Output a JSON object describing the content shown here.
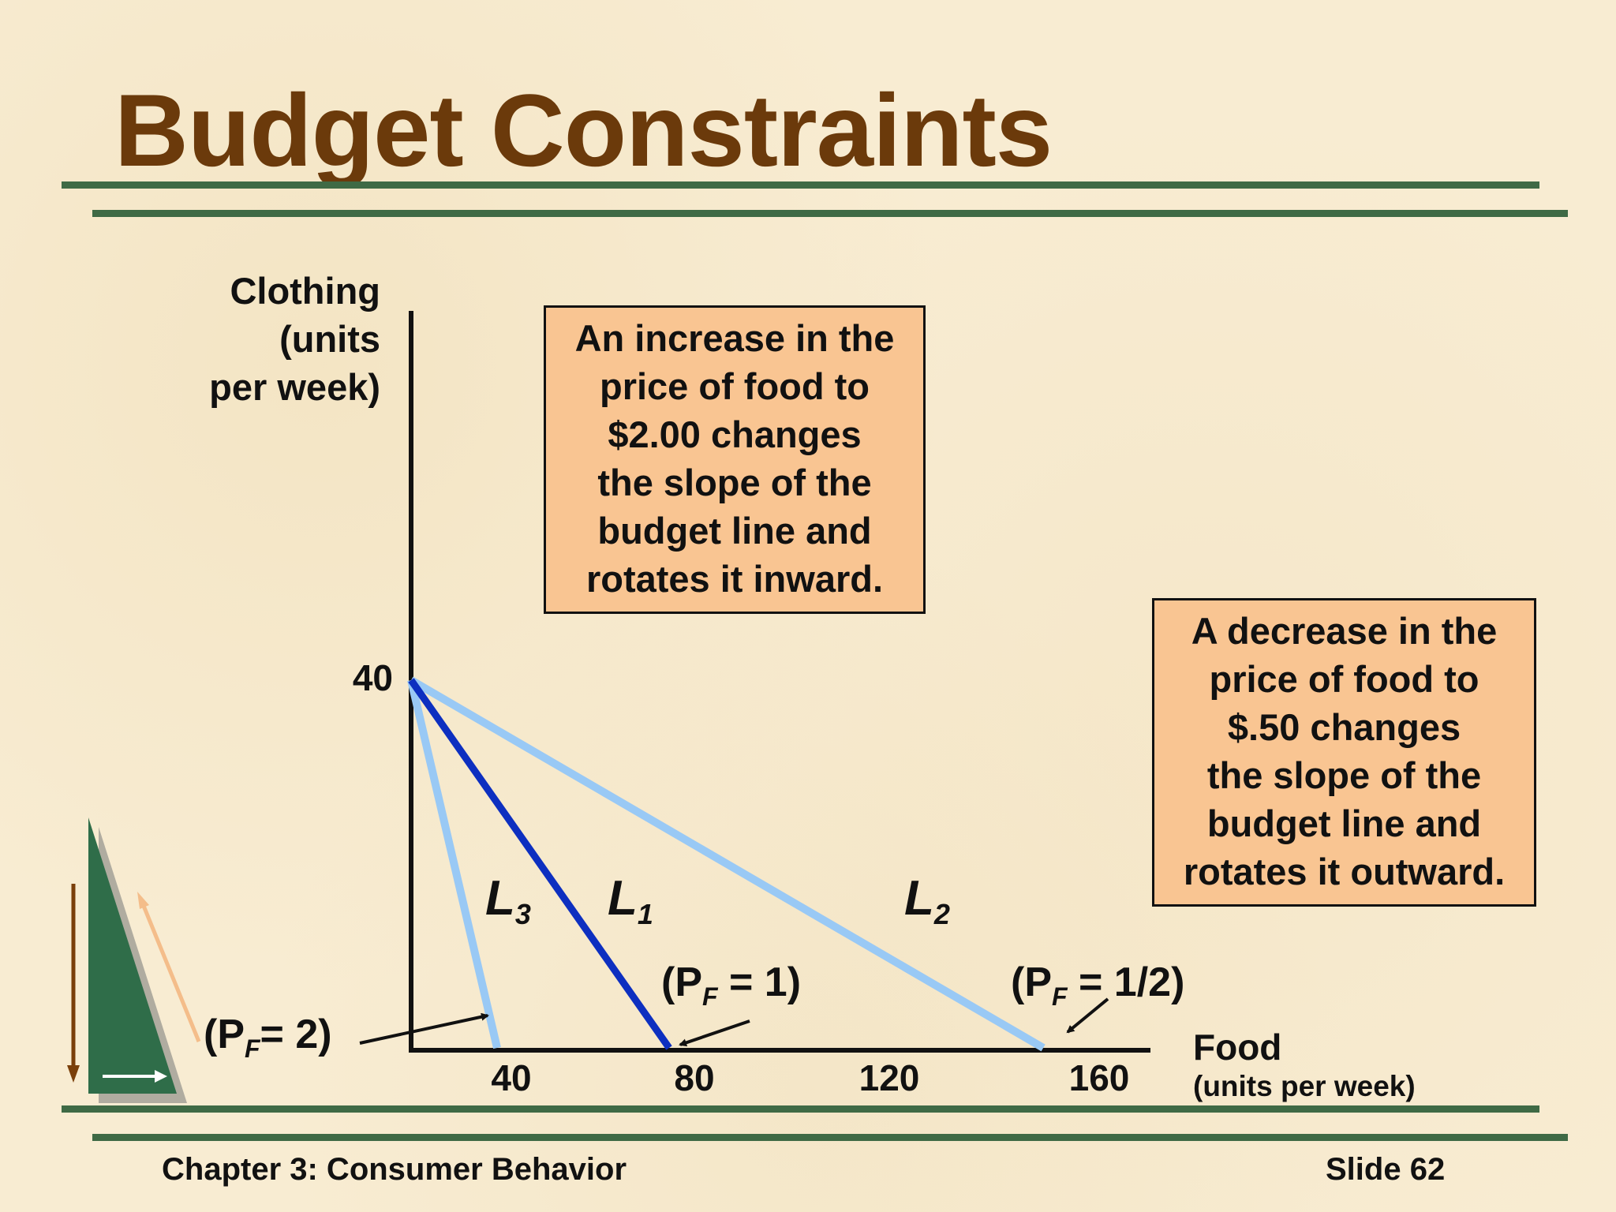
{
  "slide": {
    "title": "Budget Constraints",
    "footer_left": "Chapter 3: Consumer Behavior",
    "footer_right": "Slide 62",
    "colors": {
      "title": "#6b3a0b",
      "rule": "#3f6a45",
      "callout_fill": "#f9c592",
      "background": "#f8ecd2"
    }
  },
  "chart_data": {
    "type": "line",
    "x_axis": {
      "label": "Food",
      "unit_label": "(units per week)",
      "ticks": [
        "40",
        "80",
        "120",
        "160"
      ],
      "range": [
        0,
        160
      ]
    },
    "y_axis": {
      "label_lines": [
        "Clothing",
        "(units",
        "per week)"
      ],
      "ticks": [
        "40"
      ],
      "range": [
        0,
        40
      ]
    },
    "series": [
      {
        "name": "L",
        "subscript": "3",
        "price_label": "(P",
        "price_sub": "F",
        "price_rest": "= 2)",
        "x": [
          0,
          20
        ],
        "y": [
          40,
          0
        ],
        "color": "#99c9f5",
        "emphasis": false
      },
      {
        "name": "L",
        "subscript": "1",
        "price_label": "(P",
        "price_sub": "F",
        "price_rest": " = 1)",
        "x": [
          0,
          60
        ],
        "y": [
          40,
          0
        ],
        "color": "#0d2fc0",
        "emphasis": true
      },
      {
        "name": "L",
        "subscript": "2",
        "price_label": "(P",
        "price_sub": "F",
        "price_rest": " = 1/2)",
        "x": [
          0,
          147
        ],
        "y": [
          40,
          0
        ],
        "color": "#99c9f5",
        "emphasis": false
      }
    ],
    "annotations": [
      {
        "lines": [
          "An increase in the",
          "price of food to",
          "$2.00 changes",
          "the slope of the",
          "budget line and",
          "rotates it inward."
        ]
      },
      {
        "lines": [
          "A decrease in the",
          "price of food to",
          "$.50 changes",
          "the slope of the",
          "budget line and",
          "rotates it outward."
        ]
      }
    ],
    "grid": false
  }
}
